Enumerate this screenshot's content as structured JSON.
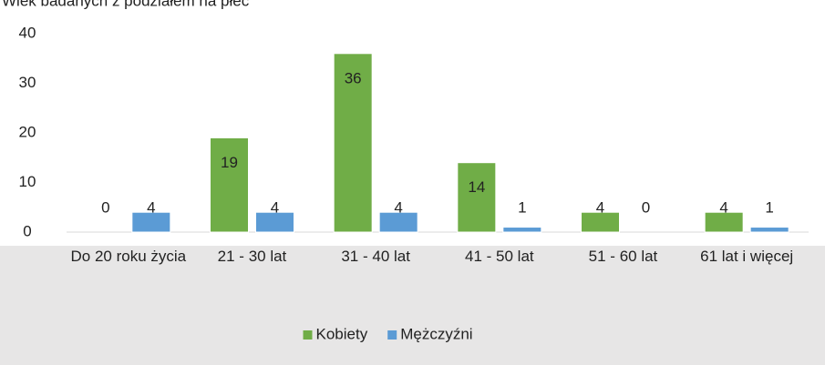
{
  "chart_data": {
    "type": "bar",
    "title": "Wiek badanych z podziałem na płeć",
    "categories": [
      "Do 20 roku życia",
      "21 - 30 lat",
      "31 - 40 lat",
      "41 - 50 lat",
      "51 - 60 lat",
      "61 lat i więcej"
    ],
    "series": [
      {
        "name": "Kobiety",
        "color": "#70ad47",
        "values": [
          0,
          19,
          36,
          14,
          4,
          4
        ]
      },
      {
        "name": "Mężczyźni",
        "color": "#5b9bd5",
        "values": [
          4,
          4,
          4,
          1,
          0,
          1
        ]
      }
    ],
    "ylim": [
      0,
      40
    ],
    "yticks": [
      0,
      10,
      20,
      30,
      40
    ],
    "grid": false,
    "legend": "bottom"
  }
}
